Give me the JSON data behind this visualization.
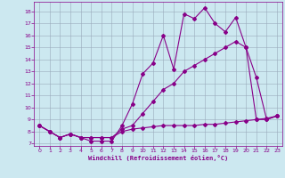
{
  "xlabel": "Windchill (Refroidissement éolien,°C)",
  "bg_color": "#cce8f0",
  "line_color": "#880088",
  "grid_color": "#99aabb",
  "xlim": [
    -0.5,
    23.5
  ],
  "ylim": [
    6.8,
    18.8
  ],
  "xticks": [
    0,
    1,
    2,
    3,
    4,
    5,
    6,
    7,
    8,
    9,
    10,
    11,
    12,
    13,
    14,
    15,
    16,
    17,
    18,
    19,
    20,
    21,
    22,
    23
  ],
  "yticks": [
    7,
    8,
    9,
    10,
    11,
    12,
    13,
    14,
    15,
    16,
    17,
    18
  ],
  "line1_x": [
    0,
    1,
    2,
    3,
    4,
    5,
    6,
    7,
    8,
    9,
    10,
    11,
    12,
    13,
    14,
    15,
    16,
    17,
    18,
    19,
    20,
    21,
    22,
    23
  ],
  "line1_y": [
    8.5,
    8.0,
    7.5,
    7.8,
    7.5,
    7.2,
    7.2,
    7.2,
    8.5,
    10.3,
    12.8,
    13.7,
    16.0,
    13.2,
    17.8,
    17.4,
    18.3,
    17.0,
    16.3,
    17.5,
    15.0,
    12.5,
    9.0,
    9.3
  ],
  "line2_x": [
    0,
    1,
    2,
    3,
    4,
    5,
    6,
    7,
    8,
    9,
    10,
    11,
    12,
    13,
    14,
    15,
    16,
    17,
    18,
    19,
    20,
    21,
    22,
    23
  ],
  "line2_y": [
    8.5,
    8.0,
    7.5,
    7.8,
    7.5,
    7.5,
    7.5,
    7.5,
    8.2,
    8.5,
    9.5,
    10.5,
    11.5,
    12.0,
    13.0,
    13.5,
    14.0,
    14.5,
    15.0,
    15.5,
    15.0,
    9.0,
    9.1,
    9.3
  ],
  "line3_x": [
    0,
    1,
    2,
    3,
    4,
    5,
    6,
    7,
    8,
    9,
    10,
    11,
    12,
    13,
    14,
    15,
    16,
    17,
    18,
    19,
    20,
    21,
    22,
    23
  ],
  "line3_y": [
    8.5,
    8.0,
    7.5,
    7.8,
    7.5,
    7.5,
    7.5,
    7.5,
    8.0,
    8.2,
    8.3,
    8.4,
    8.5,
    8.5,
    8.5,
    8.5,
    8.6,
    8.6,
    8.7,
    8.8,
    8.9,
    9.0,
    9.0,
    9.3
  ]
}
